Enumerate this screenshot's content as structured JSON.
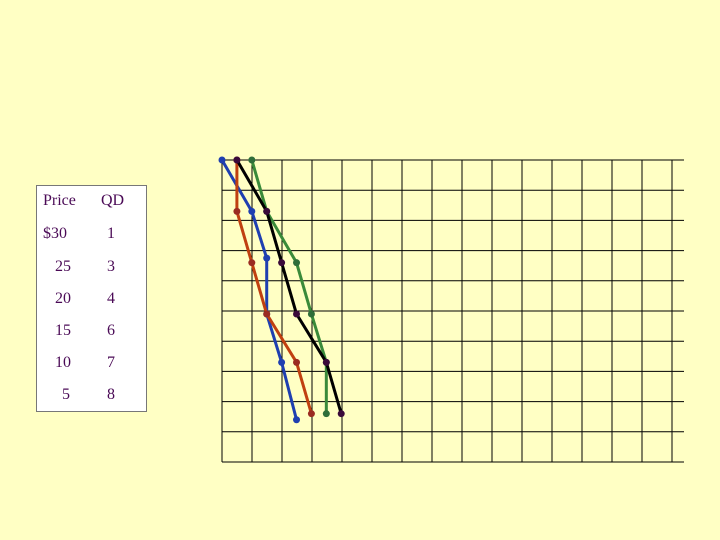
{
  "table": {
    "headers": [
      "Price",
      "QD"
    ],
    "rows": [
      {
        "price": "$30",
        "qd": "1"
      },
      {
        "price": "25",
        "qd": "3"
      },
      {
        "price": "20",
        "qd": "4"
      },
      {
        "price": "15",
        "qd": "6"
      },
      {
        "price": "10",
        "qd": "7"
      },
      {
        "price": "5",
        "qd": "8"
      }
    ]
  },
  "chart_data": {
    "type": "line",
    "xlabel": "",
    "ylabel": "",
    "xlim": [
      0,
      15.5
    ],
    "ylim": [
      0,
      10
    ],
    "grid": true,
    "series": [
      {
        "color": "#1f3fb0",
        "marker_color": "#1f3fb0",
        "points": [
          [
            0,
            10
          ],
          [
            1,
            8.3
          ],
          [
            1.5,
            6.75
          ],
          [
            1.5,
            4.9
          ],
          [
            2,
            3.3
          ],
          [
            2.5,
            1.4
          ]
        ]
      },
      {
        "color": "#c04010",
        "marker_color": "#9a2c22",
        "points": [
          [
            0.5,
            10
          ],
          [
            0.5,
            8.3
          ],
          [
            1,
            6.6
          ],
          [
            1.5,
            4.9
          ],
          [
            2.5,
            3.3
          ],
          [
            3,
            1.6
          ]
        ]
      },
      {
        "color": "#3a8a3a",
        "marker_color": "#2f6e3a",
        "points": [
          [
            1,
            10
          ],
          [
            1.5,
            8.3
          ],
          [
            2.5,
            6.6
          ],
          [
            3,
            4.9
          ],
          [
            3.5,
            3.3
          ],
          [
            3.5,
            1.6
          ]
        ]
      },
      {
        "color": "#000000",
        "marker_color": "#3a0a3a",
        "points": [
          [
            0.5,
            10
          ],
          [
            1.5,
            8.3
          ],
          [
            2,
            6.6
          ],
          [
            2.5,
            4.9
          ],
          [
            3.5,
            3.3
          ],
          [
            4,
            1.6
          ]
        ]
      }
    ]
  }
}
